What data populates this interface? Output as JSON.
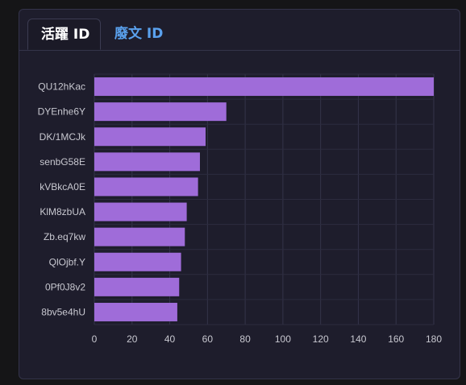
{
  "tabs": [
    {
      "label": "活躍 ID",
      "active": true
    },
    {
      "label": "廢文 ID",
      "active": false
    }
  ],
  "colors": {
    "bar": "#9f6cd9",
    "active_tab_text": "#ffffff",
    "inactive_tab_text": "#5aa1ee",
    "axis_text": "#c8c8d0"
  },
  "chart_data": {
    "type": "bar",
    "orientation": "horizontal",
    "categories": [
      "QU12hKac",
      "DYEnhe6Y",
      "DK/1MCJk",
      "senbG58E",
      "kVBkcA0E",
      "KlM8zbUA",
      "Zb.eq7kw",
      "QlOjbf.Y",
      "0Pf0J8v2",
      "8bv5e4hU"
    ],
    "values": [
      180,
      70,
      59,
      56,
      55,
      49,
      48,
      46,
      45,
      44
    ],
    "xlim": [
      0,
      180
    ],
    "xticks": [
      0,
      20,
      40,
      60,
      80,
      100,
      120,
      140,
      160,
      180
    ],
    "grid": true,
    "legend": "none"
  }
}
